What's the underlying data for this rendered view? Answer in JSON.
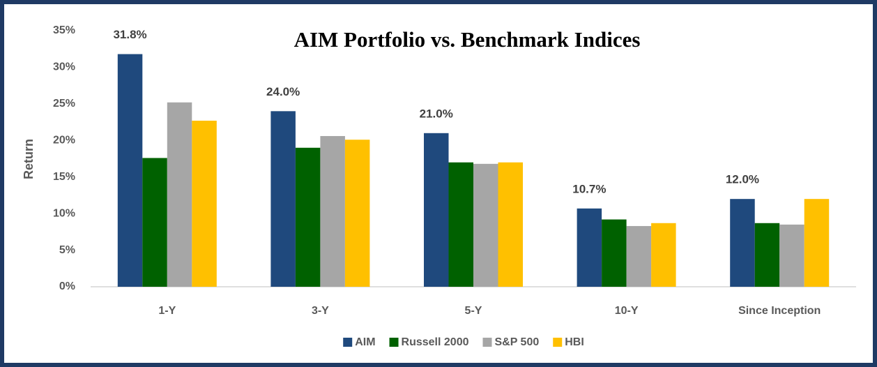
{
  "chart_data": {
    "type": "bar",
    "title": "AIM Portfolio vs. Benchmark Indices",
    "ylabel": "Return",
    "categories": [
      "1-Y",
      "3-Y",
      "5-Y",
      "10-Y",
      "Since Inception"
    ],
    "series": [
      {
        "name": "AIM",
        "color": "#1f497d",
        "values": [
          31.8,
          24.0,
          21.0,
          10.7,
          12.0
        ],
        "value_labels": [
          "31.8%",
          "24.0%",
          "21.0%",
          "10.7%",
          "12.0%"
        ]
      },
      {
        "name": "Russell 2000",
        "color": "#006100",
        "values": [
          17.6,
          19.0,
          17.0,
          9.2,
          8.7
        ]
      },
      {
        "name": "S&P 500",
        "color": "#a6a6a6",
        "values": [
          25.2,
          20.6,
          16.8,
          8.3,
          8.5
        ]
      },
      {
        "name": "HBI",
        "color": "#ffc000",
        "values": [
          22.7,
          20.1,
          17.0,
          8.7,
          12.0
        ]
      }
    ],
    "ylim": [
      0,
      35
    ],
    "yticks": [
      {
        "value": 0,
        "label": "0%"
      },
      {
        "value": 5,
        "label": "5%"
      },
      {
        "value": 10,
        "label": "10%"
      },
      {
        "value": 15,
        "label": "15%"
      },
      {
        "value": 20,
        "label": "20%"
      },
      {
        "value": 25,
        "label": "25%"
      },
      {
        "value": 30,
        "label": "30%"
      },
      {
        "value": 35,
        "label": "35%"
      }
    ],
    "grid": false,
    "legend": "bottom"
  }
}
